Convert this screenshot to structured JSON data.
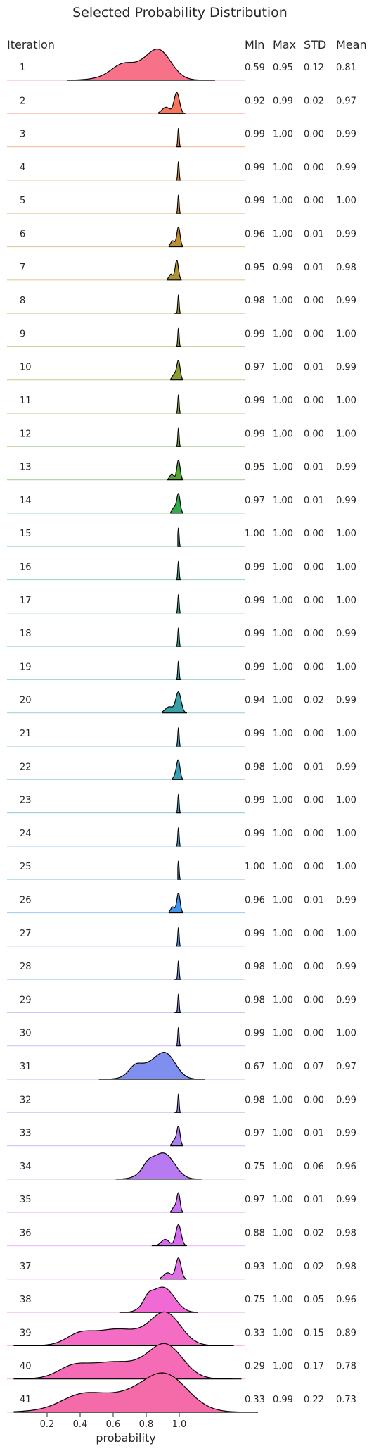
{
  "chart_data": {
    "type": "ridgeline",
    "title": "Selected Probability Distribution",
    "xlabel": "probability",
    "xticks": [
      "0.2",
      "0.4",
      "0.6",
      "0.8",
      "1.0"
    ],
    "xtick_values": [
      0.2,
      0.4,
      0.6,
      0.8,
      1.0
    ],
    "xlim": [
      0.0,
      1.3
    ],
    "row_header": "Iteration",
    "stat_headers": [
      "Min",
      "Max",
      "STD",
      "Mean"
    ],
    "grid": false,
    "rows": [
      {
        "iteration": "1",
        "min": "0.59",
        "max": "0.95",
        "std": "0.12",
        "mean": "0.81",
        "color": "#f77189"
      },
      {
        "iteration": "2",
        "min": "0.92",
        "max": "0.99",
        "std": "0.02",
        "mean": "0.97",
        "color": "#f7745f"
      },
      {
        "iteration": "3",
        "min": "0.99",
        "max": "1.00",
        "std": "0.00",
        "mean": "0.99",
        "color": "#ee7a3c"
      },
      {
        "iteration": "4",
        "min": "0.99",
        "max": "1.00",
        "std": "0.00",
        "mean": "0.99",
        "color": "#dc8432"
      },
      {
        "iteration": "5",
        "min": "0.99",
        "max": "1.00",
        "std": "0.00",
        "mean": "1.00",
        "color": "#cc8a32"
      },
      {
        "iteration": "6",
        "min": "0.96",
        "max": "1.00",
        "std": "0.01",
        "mean": "0.99",
        "color": "#bd8f32"
      },
      {
        "iteration": "7",
        "min": "0.95",
        "max": "0.99",
        "std": "0.01",
        "mean": "0.98",
        "color": "#b09332"
      },
      {
        "iteration": "8",
        "min": "0.98",
        "max": "1.00",
        "std": "0.00",
        "mean": "0.99",
        "color": "#a39632"
      },
      {
        "iteration": "9",
        "min": "0.99",
        "max": "1.00",
        "std": "0.00",
        "mean": "1.00",
        "color": "#979a32"
      },
      {
        "iteration": "10",
        "min": "0.97",
        "max": "1.00",
        "std": "0.01",
        "mean": "0.99",
        "color": "#8a9d32"
      },
      {
        "iteration": "11",
        "min": "0.99",
        "max": "1.00",
        "std": "0.00",
        "mean": "1.00",
        "color": "#7ca032"
      },
      {
        "iteration": "12",
        "min": "0.99",
        "max": "1.00",
        "std": "0.00",
        "mean": "1.00",
        "color": "#6aa332"
      },
      {
        "iteration": "13",
        "min": "0.95",
        "max": "1.00",
        "std": "0.01",
        "mean": "0.99",
        "color": "#50a732"
      },
      {
        "iteration": "14",
        "min": "0.97",
        "max": "1.00",
        "std": "0.01",
        "mean": "0.99",
        "color": "#33a94a"
      },
      {
        "iteration": "15",
        "min": "1.00",
        "max": "1.00",
        "std": "0.00",
        "mean": "1.00",
        "color": "#34a76a"
      },
      {
        "iteration": "16",
        "min": "0.99",
        "max": "1.00",
        "std": "0.00",
        "mean": "1.00",
        "color": "#35a67c"
      },
      {
        "iteration": "17",
        "min": "0.99",
        "max": "1.00",
        "std": "0.00",
        "mean": "1.00",
        "color": "#36a48a"
      },
      {
        "iteration": "18",
        "min": "0.99",
        "max": "1.00",
        "std": "0.00",
        "mean": "0.99",
        "color": "#36a395"
      },
      {
        "iteration": "19",
        "min": "0.99",
        "max": "1.00",
        "std": "0.00",
        "mean": "1.00",
        "color": "#37a29f"
      },
      {
        "iteration": "20",
        "min": "0.94",
        "max": "1.00",
        "std": "0.02",
        "mean": "0.99",
        "color": "#37a1a8"
      },
      {
        "iteration": "21",
        "min": "0.99",
        "max": "1.00",
        "std": "0.00",
        "mean": "1.00",
        "color": "#38a0b1"
      },
      {
        "iteration": "22",
        "min": "0.98",
        "max": "1.00",
        "std": "0.01",
        "mean": "0.99",
        "color": "#399eb9"
      },
      {
        "iteration": "23",
        "min": "0.99",
        "max": "1.00",
        "std": "0.00",
        "mean": "1.00",
        "color": "#3a9cc2"
      },
      {
        "iteration": "24",
        "min": "0.99",
        "max": "1.00",
        "std": "0.00",
        "mean": "1.00",
        "color": "#3b9acd"
      },
      {
        "iteration": "25",
        "min": "1.00",
        "max": "1.00",
        "std": "0.00",
        "mean": "1.00",
        "color": "#3d97d9"
      },
      {
        "iteration": "26",
        "min": "0.96",
        "max": "1.00",
        "std": "0.01",
        "mean": "0.99",
        "color": "#4194e7"
      },
      {
        "iteration": "27",
        "min": "0.99",
        "max": "1.00",
        "std": "0.00",
        "mean": "1.00",
        "color": "#4f90f4"
      },
      {
        "iteration": "28",
        "min": "0.98",
        "max": "1.00",
        "std": "0.00",
        "mean": "0.99",
        "color": "#6a8cf4"
      },
      {
        "iteration": "29",
        "min": "0.98",
        "max": "1.00",
        "std": "0.00",
        "mean": "0.99",
        "color": "#7f87f4"
      },
      {
        "iteration": "30",
        "min": "0.99",
        "max": "1.00",
        "std": "0.00",
        "mean": "1.00",
        "color": "#9282f4"
      },
      {
        "iteration": "31",
        "min": "0.67",
        "max": "1.00",
        "std": "0.07",
        "mean": "0.97",
        "color": "#7f8ff0"
      },
      {
        "iteration": "32",
        "min": "0.98",
        "max": "1.00",
        "std": "0.00",
        "mean": "0.99",
        "color": "#9a85f2"
      },
      {
        "iteration": "33",
        "min": "0.97",
        "max": "1.00",
        "std": "0.01",
        "mean": "0.99",
        "color": "#a97ef4"
      },
      {
        "iteration": "34",
        "min": "0.75",
        "max": "1.00",
        "std": "0.06",
        "mean": "0.96",
        "color": "#b77af2"
      },
      {
        "iteration": "35",
        "min": "0.97",
        "max": "1.00",
        "std": "0.01",
        "mean": "0.99",
        "color": "#c972f4"
      },
      {
        "iteration": "36",
        "min": "0.88",
        "max": "1.00",
        "std": "0.02",
        "mean": "0.98",
        "color": "#d86af1"
      },
      {
        "iteration": "37",
        "min": "0.93",
        "max": "1.00",
        "std": "0.02",
        "mean": "0.98",
        "color": "#e46ee4"
      },
      {
        "iteration": "38",
        "min": "0.75",
        "max": "1.00",
        "std": "0.05",
        "mean": "0.96",
        "color": "#f06ad6"
      },
      {
        "iteration": "39",
        "min": "0.33",
        "max": "1.00",
        "std": "0.15",
        "mean": "0.89",
        "color": "#f56cc4"
      },
      {
        "iteration": "40",
        "min": "0.29",
        "max": "1.00",
        "std": "0.17",
        "mean": "0.78",
        "color": "#f66bb6"
      },
      {
        "iteration": "41",
        "min": "0.33",
        "max": "0.99",
        "std": "0.22",
        "mean": "0.73",
        "color": "#f56aa8"
      }
    ]
  }
}
